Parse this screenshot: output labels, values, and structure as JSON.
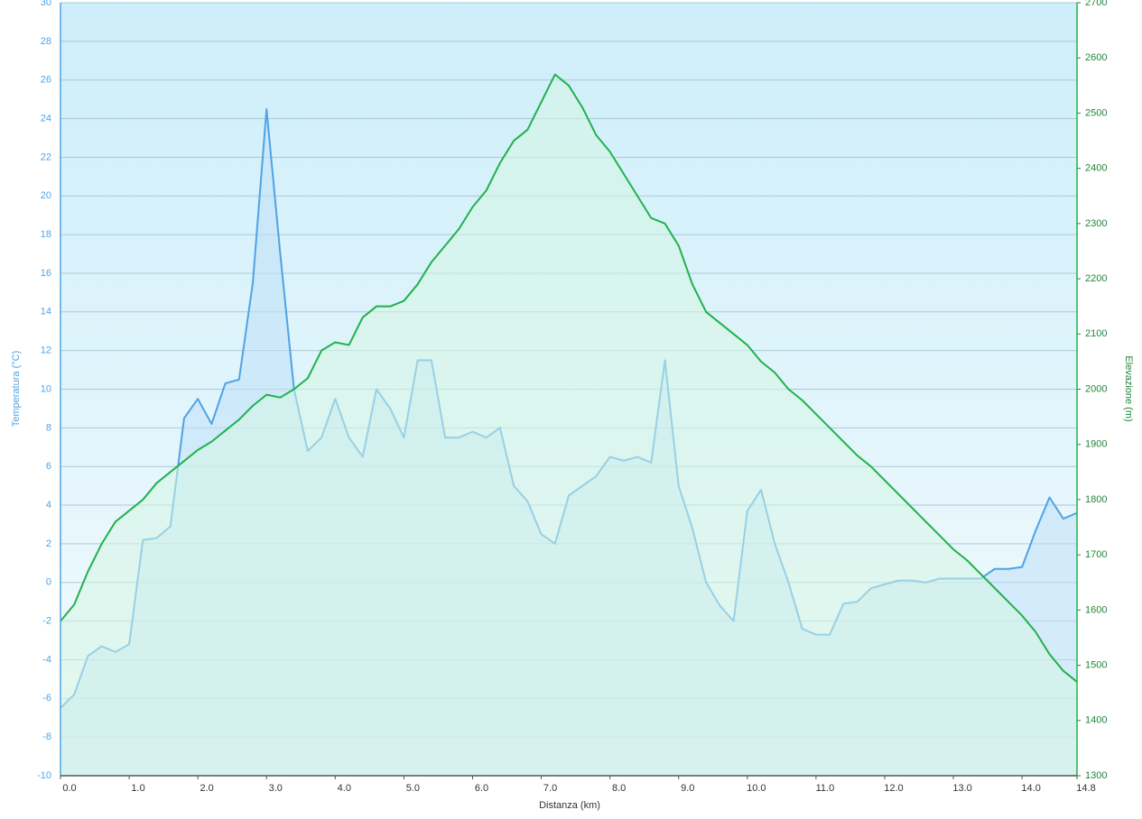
{
  "chart_data": {
    "type": "line",
    "xlabel": "Distanza  (km)",
    "ylabel": "Temperatura (°C)",
    "y2label": "Elevazione (m)",
    "x": [
      0.0,
      0.2,
      0.4,
      0.6,
      0.8,
      1.0,
      1.2,
      1.4,
      1.6,
      1.8,
      2.0,
      2.2,
      2.4,
      2.6,
      2.8,
      3.0,
      3.2,
      3.4,
      3.6,
      3.8,
      4.0,
      4.2,
      4.4,
      4.6,
      4.8,
      5.0,
      5.2,
      5.4,
      5.6,
      5.8,
      6.0,
      6.2,
      6.4,
      6.6,
      6.8,
      7.0,
      7.2,
      7.4,
      7.6,
      7.8,
      8.0,
      8.2,
      8.4,
      8.6,
      8.8,
      9.0,
      9.2,
      9.4,
      9.6,
      9.8,
      10.0,
      10.2,
      10.4,
      10.6,
      10.8,
      11.0,
      11.2,
      11.4,
      11.6,
      11.8,
      12.0,
      12.2,
      12.4,
      12.6,
      12.8,
      13.0,
      13.2,
      13.4,
      13.6,
      13.8,
      14.0,
      14.2,
      14.4,
      14.6,
      14.8
    ],
    "series": [
      {
        "name": "Temperatura (°C)",
        "color": "#4ea3e6",
        "fill": "#bfe0f7",
        "axis": "y",
        "values": [
          -6.5,
          -5.8,
          -3.8,
          -3.3,
          -3.6,
          -3.2,
          2.2,
          2.3,
          2.9,
          8.5,
          9.5,
          8.2,
          10.3,
          10.5,
          15.5,
          24.5,
          17,
          10,
          6.8,
          7.5,
          9.5,
          7.5,
          6.5,
          10,
          9,
          7.5,
          11.5,
          11.5,
          7.5,
          7.5,
          7.8,
          7.5,
          8,
          5,
          4.2,
          2.5,
          2,
          4.5,
          5,
          5.5,
          6.5,
          6.3,
          6.5,
          6.2,
          11.5,
          5,
          2.8,
          0,
          -1.2,
          -2,
          3.7,
          4.8,
          2,
          0,
          -2.4,
          -2.7,
          -2.7,
          -1.1,
          -1,
          -0.3,
          -0.1,
          0.1,
          0.1,
          0,
          0.2,
          0.2,
          0.2,
          0.2,
          0.7,
          0.7,
          0.8,
          2.7,
          4.4,
          3.3,
          3.6
        ]
      },
      {
        "name": "Elevazione (m)",
        "color": "#22b14c",
        "fill": "#d6f5e4",
        "axis": "y2",
        "values": [
          1580,
          1610,
          1670,
          1720,
          1760,
          1780,
          1800,
          1830,
          1850,
          1870,
          1890,
          1905,
          1925,
          1945,
          1970,
          1990,
          1985,
          2000,
          2020,
          2070,
          2085,
          2080,
          2130,
          2150,
          2150,
          2160,
          2190,
          2230,
          2260,
          2290,
          2330,
          2360,
          2410,
          2450,
          2470,
          2520,
          2570,
          2550,
          2510,
          2460,
          2430,
          2390,
          2350,
          2310,
          2300,
          2260,
          2190,
          2140,
          2120,
          2100,
          2080,
          2050,
          2030,
          2000,
          1980,
          1955,
          1930,
          1905,
          1880,
          1860,
          1835,
          1810,
          1785,
          1760,
          1735,
          1710,
          1690,
          1665,
          1640,
          1615,
          1590,
          1560,
          1520,
          1490,
          1470
        ]
      }
    ],
    "xlim": [
      0,
      14.8
    ],
    "xticks": [
      {
        "value": 0,
        "label": "0.0"
      },
      {
        "value": 1,
        "label": "1.0"
      },
      {
        "value": 2,
        "label": "2.0"
      },
      {
        "value": 3,
        "label": "3.0"
      },
      {
        "value": 4,
        "label": "4.0"
      },
      {
        "value": 5,
        "label": "5.0"
      },
      {
        "value": 6,
        "label": "6.0"
      },
      {
        "value": 7,
        "label": "7.0"
      },
      {
        "value": 8,
        "label": "8.0"
      },
      {
        "value": 9,
        "label": "9.0"
      },
      {
        "value": 10,
        "label": "10.0"
      },
      {
        "value": 11,
        "label": "11.0"
      },
      {
        "value": 12,
        "label": "12.0"
      },
      {
        "value": 13,
        "label": "13.0"
      },
      {
        "value": 14,
        "label": "14.0"
      },
      14.8
    ],
    "ylim": [
      -10,
      30
    ],
    "yticks": [
      -10,
      -8,
      -6,
      -4,
      -2,
      0,
      2,
      4,
      6,
      8,
      10,
      12,
      14,
      16,
      18,
      20,
      22,
      24,
      26,
      28,
      30
    ],
    "y2lim": [
      1300,
      2700
    ],
    "y2ticks": [
      1300,
      1400,
      1500,
      1600,
      1700,
      1800,
      1900,
      2000,
      2100,
      2200,
      2300,
      2400,
      2500,
      2600,
      2700
    ],
    "grid": true
  }
}
